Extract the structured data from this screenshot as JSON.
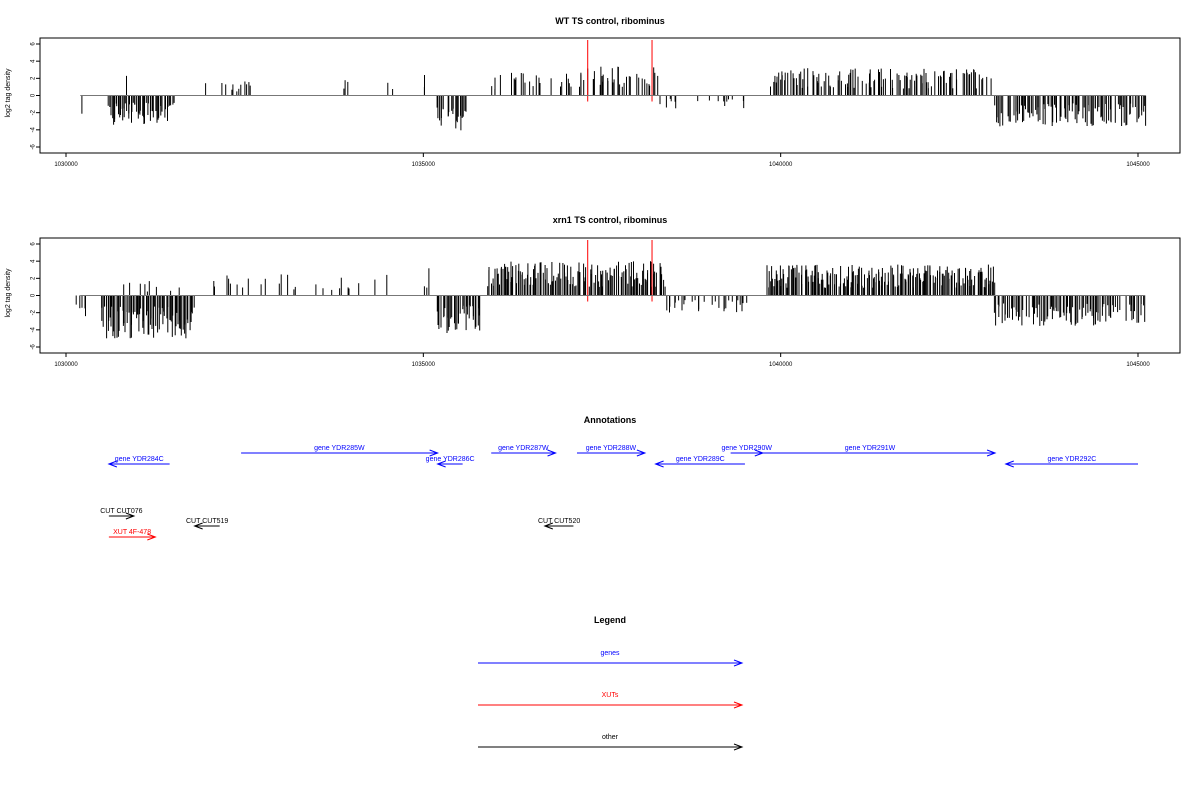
{
  "colors": {
    "gene": "#0000ff",
    "xut": "#ff0000",
    "other": "#000000",
    "highlight": "#ff0000",
    "axis": "#000000"
  },
  "chart_data": [
    {
      "type": "bar",
      "title": "WT TS control, ribominus",
      "xlabel": "",
      "ylabel": "log2 tag density",
      "xlim": [
        1030000,
        1045000
      ],
      "ylim": [
        -6,
        6
      ],
      "x_ticks": [
        "1030000",
        "1035000",
        "1040000",
        "1045000"
      ],
      "y_ticks": [
        "6",
        "4",
        "2",
        "0",
        "-2",
        "-4",
        "-6"
      ],
      "highlight_positions": [
        1037300,
        1038200
      ],
      "segments": [
        {
          "start": 1030200,
          "end": 1030220,
          "density": 0.4,
          "amp": -2.2,
          "seed": 1
        },
        {
          "start": 1030600,
          "end": 1031500,
          "density": 0.9,
          "amp": -3.4,
          "seed": 2
        },
        {
          "start": 1030850,
          "end": 1030870,
          "density": 0.6,
          "amp": 2.4,
          "seed": 3
        },
        {
          "start": 1031950,
          "end": 1032700,
          "density": 0.15,
          "amp": 1.8,
          "seed": 4
        },
        {
          "start": 1033800,
          "end": 1034700,
          "density": 0.12,
          "amp": 2.2,
          "seed": 5
        },
        {
          "start": 1035000,
          "end": 1035050,
          "density": 0.6,
          "amp": 3.6,
          "seed": 6
        },
        {
          "start": 1035200,
          "end": 1035600,
          "density": 0.9,
          "amp": -4.2,
          "seed": 7
        },
        {
          "start": 1035800,
          "end": 1037200,
          "density": 0.35,
          "amp": 2.8,
          "seed": 8
        },
        {
          "start": 1037200,
          "end": 1038300,
          "density": 0.45,
          "amp": 3.4,
          "seed": 9
        },
        {
          "start": 1038300,
          "end": 1039500,
          "density": 0.18,
          "amp": -1.6,
          "seed": 10
        },
        {
          "start": 1039850,
          "end": 1042950,
          "density": 0.6,
          "amp": 3.2,
          "seed": 11
        },
        {
          "start": 1043000,
          "end": 1045100,
          "density": 0.75,
          "amp": -3.6,
          "seed": 12
        }
      ]
    },
    {
      "type": "bar",
      "title": "xrn1 TS control, ribominus",
      "xlabel": "",
      "ylabel": "log2 tag density",
      "xlim": [
        1030000,
        1045000
      ],
      "ylim": [
        -6,
        6
      ],
      "x_ticks": [
        "1030000",
        "1035000",
        "1040000",
        "1045000"
      ],
      "y_ticks": [
        "6",
        "4",
        "2",
        "0",
        "-2",
        "-4",
        "-6"
      ],
      "highlight_positions": [
        1037300,
        1038200
      ],
      "segments": [
        {
          "start": 1030150,
          "end": 1030300,
          "density": 0.5,
          "amp": -2.4,
          "seed": 21
        },
        {
          "start": 1030500,
          "end": 1031800,
          "density": 1.0,
          "amp": -5.0,
          "seed": 22
        },
        {
          "start": 1030700,
          "end": 1031800,
          "density": 0.2,
          "amp": 1.8,
          "seed": 23
        },
        {
          "start": 1032000,
          "end": 1034500,
          "density": 0.18,
          "amp": 2.6,
          "seed": 24
        },
        {
          "start": 1035000,
          "end": 1035100,
          "density": 0.6,
          "amp": 3.2,
          "seed": 25
        },
        {
          "start": 1035200,
          "end": 1035800,
          "density": 0.95,
          "amp": -4.4,
          "seed": 26
        },
        {
          "start": 1035900,
          "end": 1038400,
          "density": 0.9,
          "amp": 4.0,
          "seed": 27
        },
        {
          "start": 1038400,
          "end": 1039600,
          "density": 0.3,
          "amp": -2.0,
          "seed": 28
        },
        {
          "start": 1039800,
          "end": 1043000,
          "density": 0.95,
          "amp": 3.6,
          "seed": 29
        },
        {
          "start": 1043000,
          "end": 1045100,
          "density": 0.8,
          "amp": -3.6,
          "seed": 30
        }
      ]
    }
  ],
  "annotations": {
    "title": "Annotations",
    "features": [
      {
        "label": "gene YDR284C",
        "kind": "gene",
        "start": 1030600,
        "end": 1031450,
        "strand": "-",
        "row": 1
      },
      {
        "label": "gene YDR285W",
        "kind": "gene",
        "start": 1032450,
        "end": 1035200,
        "strand": "+",
        "row": 0
      },
      {
        "label": "gene YDR286C",
        "kind": "gene",
        "start": 1035200,
        "end": 1035550,
        "strand": "-",
        "row": 1
      },
      {
        "label": "gene YDR287W",
        "kind": "gene",
        "start": 1035950,
        "end": 1036850,
        "strand": "+",
        "row": 0
      },
      {
        "label": "gene YDR288W",
        "kind": "gene",
        "start": 1037150,
        "end": 1038100,
        "strand": "+",
        "row": 0
      },
      {
        "label": "gene YDR289C",
        "kind": "gene",
        "start": 1038250,
        "end": 1039500,
        "strand": "-",
        "row": 1
      },
      {
        "label": "gene YDR290W",
        "kind": "gene",
        "start": 1039300,
        "end": 1039750,
        "strand": "+",
        "row": 0
      },
      {
        "label": "gene YDR291W",
        "kind": "gene",
        "start": 1039500,
        "end": 1043000,
        "strand": "+",
        "row": 0
      },
      {
        "label": "gene YDR292C",
        "kind": "gene",
        "start": 1043150,
        "end": 1045000,
        "strand": "-",
        "row": 1
      },
      {
        "label": "CUT CUT076",
        "kind": "other",
        "start": 1030600,
        "end": 1030950,
        "strand": "+",
        "row": 2
      },
      {
        "label": "CUT CUT519",
        "kind": "other",
        "start": 1031800,
        "end": 1032150,
        "strand": "-",
        "row": 3
      },
      {
        "label": "CUT CUT520",
        "kind": "other",
        "start": 1036700,
        "end": 1037100,
        "strand": "-",
        "row": 3
      },
      {
        "label": "XUT 4F-478",
        "kind": "xut",
        "start": 1030600,
        "end": 1031250,
        "strand": "+",
        "row": 4
      }
    ]
  },
  "legend": {
    "title": "Legend",
    "items": [
      {
        "label": "genes",
        "kind": "gene"
      },
      {
        "label": "XUTs",
        "kind": "xut"
      },
      {
        "label": "other",
        "kind": "other"
      }
    ]
  }
}
